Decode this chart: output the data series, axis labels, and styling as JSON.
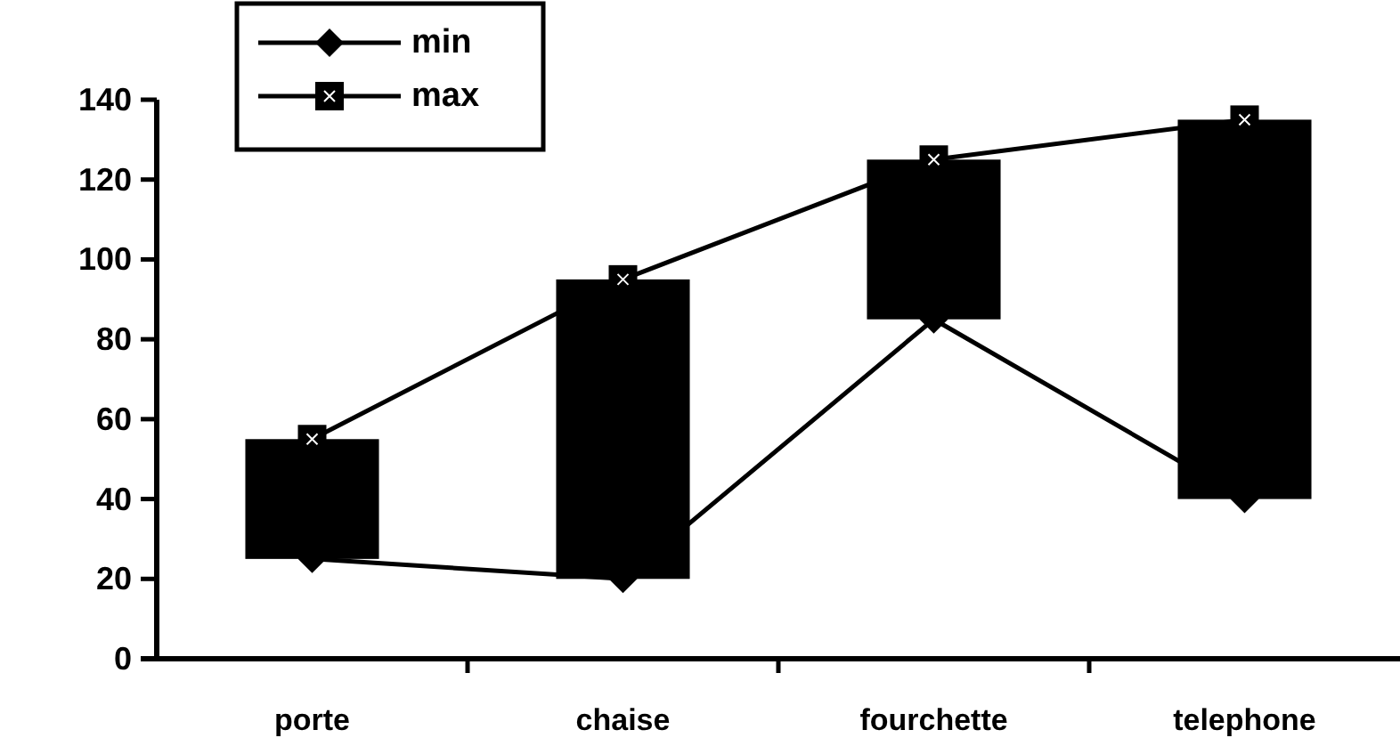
{
  "chart_data": {
    "type": "line",
    "categories": [
      "porte",
      "chaise",
      "fourchette",
      "telephone"
    ],
    "ylim": [
      0,
      140
    ],
    "yticks": [
      0,
      20,
      40,
      60,
      80,
      100,
      120,
      140
    ],
    "legend": "top left",
    "grid": false,
    "series": [
      {
        "type": "bar",
        "color": "#000000",
        "base": [
          25,
          20,
          85,
          40
        ],
        "values": [
          30,
          75,
          40,
          95
        ]
      },
      {
        "name": "min",
        "color": "#000000",
        "marker": "diamond",
        "values": [
          25,
          20,
          85,
          40
        ]
      },
      {
        "name": "max",
        "color": "#000000",
        "marker": "square",
        "values": [
          55,
          95,
          125,
          135
        ]
      }
    ]
  }
}
